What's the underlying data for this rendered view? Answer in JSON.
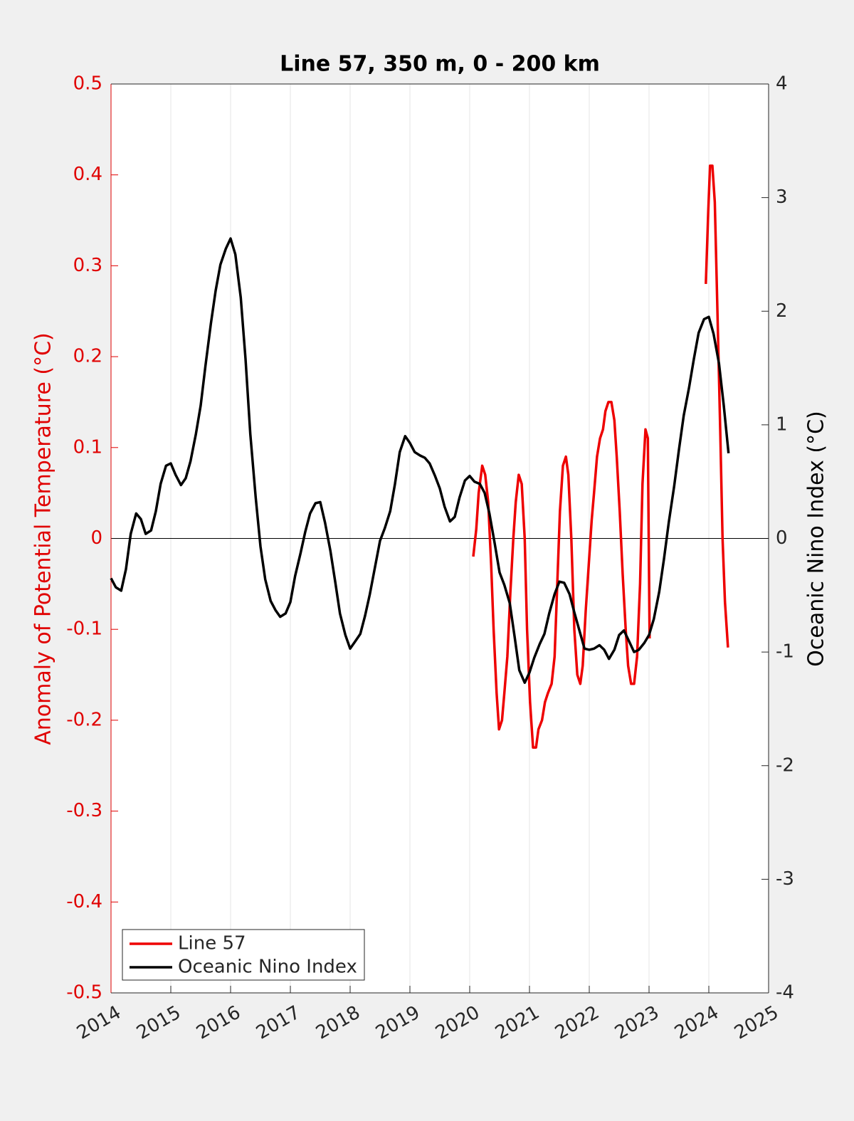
{
  "chart_data": {
    "type": "line",
    "title": "Line 57, 350 m, 0 - 200 km",
    "ylabel": "Anomaly of Potential Temperature (°C)",
    "y2label": "Oceanic Nino Index (°C)",
    "xlim": [
      2014,
      2025
    ],
    "xticks": [
      2014,
      2015,
      2016,
      2017,
      2018,
      2019,
      2020,
      2021,
      2022,
      2023,
      2024,
      2025
    ],
    "ylim": [
      -0.5,
      0.5
    ],
    "yticks": [
      0.5,
      0.4,
      0.3,
      0.2,
      0.1,
      0,
      -0.1,
      -0.2,
      -0.3,
      -0.4,
      -0.5
    ],
    "y2lim": [
      -4,
      4
    ],
    "y2ticks": [
      4,
      3,
      2,
      1,
      0,
      -1,
      -2,
      -3,
      -4
    ],
    "y_color": "#e00000",
    "xgrid": true,
    "legend": "lower-left",
    "series": [
      {
        "name": "Line 57",
        "color": "#ee0000",
        "axis": "y",
        "x": [
          2020.06,
          2020.11,
          2020.15,
          2020.21,
          2020.26,
          2020.31,
          2020.36,
          2020.4,
          2020.45,
          2020.49,
          2020.54,
          2020.58,
          2020.63,
          2020.68,
          2020.73,
          2020.77,
          2020.82,
          2020.87,
          2020.92,
          2020.96,
          2021.01,
          2021.06,
          2021.11,
          2021.15,
          2021.21,
          2021.26,
          2021.31,
          2021.37,
          2021.42,
          2021.46,
          2021.51,
          2021.56,
          2021.61,
          2021.65,
          2021.7,
          2021.75,
          2021.8,
          2021.85,
          2021.89,
          2021.94,
          2021.99,
          2022.04,
          2022.08,
          2022.13,
          2022.18,
          2022.23,
          2022.27,
          2022.32,
          2022.37,
          2022.42,
          2022.46,
          2022.51,
          2022.56,
          2022.61,
          2022.65,
          2022.7,
          2022.75,
          2022.8,
          2022.85,
          2022.89,
          2022.94,
          2022.98,
          2023.01,
          2023.5,
          2023.95,
          2023.99,
          2024.02,
          2024.06,
          2024.1,
          2024.14,
          2024.19,
          2024.23,
          2024.27,
          2024.32
        ],
        "values": [
          -0.02,
          0.01,
          0.05,
          0.08,
          0.07,
          0.04,
          -0.03,
          -0.1,
          -0.17,
          -0.21,
          -0.2,
          -0.17,
          -0.13,
          -0.06,
          0.0,
          0.04,
          0.07,
          0.06,
          0.0,
          -0.1,
          -0.18,
          -0.23,
          -0.23,
          -0.21,
          -0.2,
          -0.18,
          -0.17,
          -0.16,
          -0.13,
          -0.06,
          0.03,
          0.08,
          0.09,
          0.07,
          0.0,
          -0.1,
          -0.15,
          -0.16,
          -0.14,
          -0.08,
          -0.03,
          0.02,
          0.05,
          0.09,
          0.11,
          0.12,
          0.14,
          0.15,
          0.15,
          0.13,
          0.09,
          0.03,
          -0.04,
          -0.1,
          -0.14,
          -0.16,
          -0.16,
          -0.13,
          -0.05,
          0.06,
          0.12,
          0.11,
          -0.11,
          null,
          0.28,
          0.36,
          0.41,
          0.41,
          0.37,
          0.26,
          0.12,
          0.0,
          -0.07,
          -0.12
        ]
      },
      {
        "name": "Oceanic Nino Index",
        "color": "#000000",
        "axis": "y2",
        "x": [
          2014.0,
          2014.08,
          2014.17,
          2014.25,
          2014.33,
          2014.42,
          2014.5,
          2014.58,
          2014.67,
          2014.75,
          2014.83,
          2014.92,
          2015.0,
          2015.08,
          2015.17,
          2015.25,
          2015.33,
          2015.42,
          2015.5,
          2015.58,
          2015.67,
          2015.75,
          2015.83,
          2015.92,
          2016.0,
          2016.08,
          2016.17,
          2016.25,
          2016.33,
          2016.42,
          2016.5,
          2016.58,
          2016.67,
          2016.75,
          2016.83,
          2016.92,
          2017.0,
          2017.08,
          2017.17,
          2017.25,
          2017.33,
          2017.42,
          2017.5,
          2017.58,
          2017.67,
          2017.75,
          2017.83,
          2017.92,
          2018.0,
          2018.08,
          2018.17,
          2018.25,
          2018.33,
          2018.42,
          2018.5,
          2018.58,
          2018.67,
          2018.75,
          2018.83,
          2018.92,
          2019.0,
          2019.08,
          2019.17,
          2019.25,
          2019.33,
          2019.42,
          2019.5,
          2019.58,
          2019.67,
          2019.75,
          2019.83,
          2019.92,
          2020.0,
          2020.08,
          2020.17,
          2020.25,
          2020.33,
          2020.42,
          2020.5,
          2020.58,
          2020.67,
          2020.75,
          2020.83,
          2020.92,
          2021.0,
          2021.08,
          2021.17,
          2021.25,
          2021.33,
          2021.42,
          2021.5,
          2021.58,
          2021.67,
          2021.75,
          2021.83,
          2021.92,
          2022.0,
          2022.08,
          2022.17,
          2022.25,
          2022.33,
          2022.42,
          2022.5,
          2022.58,
          2022.67,
          2022.75,
          2022.83,
          2022.92,
          2023.0,
          2023.08,
          2023.17,
          2023.25,
          2023.33,
          2023.42,
          2023.5,
          2023.58,
          2023.67,
          2023.75,
          2023.83,
          2023.92,
          2024.0,
          2024.08,
          2024.17,
          2024.25,
          2024.33
        ],
        "values": [
          -0.35,
          -0.43,
          -0.46,
          -0.27,
          0.04,
          0.22,
          0.17,
          0.04,
          0.07,
          0.24,
          0.48,
          0.64,
          0.66,
          0.56,
          0.47,
          0.53,
          0.68,
          0.92,
          1.17,
          1.52,
          1.89,
          2.18,
          2.41,
          2.55,
          2.64,
          2.5,
          2.12,
          1.58,
          0.92,
          0.36,
          -0.07,
          -0.36,
          -0.55,
          -0.63,
          -0.69,
          -0.66,
          -0.56,
          -0.33,
          -0.13,
          0.06,
          0.22,
          0.31,
          0.32,
          0.14,
          -0.11,
          -0.38,
          -0.66,
          -0.85,
          -0.97,
          -0.91,
          -0.84,
          -0.68,
          -0.49,
          -0.24,
          -0.02,
          0.09,
          0.24,
          0.48,
          0.76,
          0.9,
          0.84,
          0.76,
          0.73,
          0.71,
          0.66,
          0.55,
          0.44,
          0.28,
          0.15,
          0.19,
          0.36,
          0.51,
          0.55,
          0.5,
          0.48,
          0.4,
          0.22,
          -0.05,
          -0.3,
          -0.41,
          -0.57,
          -0.86,
          -1.16,
          -1.27,
          -1.18,
          -1.05,
          -0.93,
          -0.84,
          -0.66,
          -0.49,
          -0.38,
          -0.39,
          -0.49,
          -0.65,
          -0.8,
          -0.97,
          -0.98,
          -0.97,
          -0.94,
          -0.98,
          -1.06,
          -0.98,
          -0.85,
          -0.81,
          -0.91,
          -1.0,
          -0.98,
          -0.92,
          -0.85,
          -0.71,
          -0.47,
          -0.18,
          0.14,
          0.46,
          0.78,
          1.08,
          1.33,
          1.58,
          1.81,
          1.93,
          1.95,
          1.8,
          1.54,
          1.17,
          0.75
        ]
      }
    ]
  }
}
